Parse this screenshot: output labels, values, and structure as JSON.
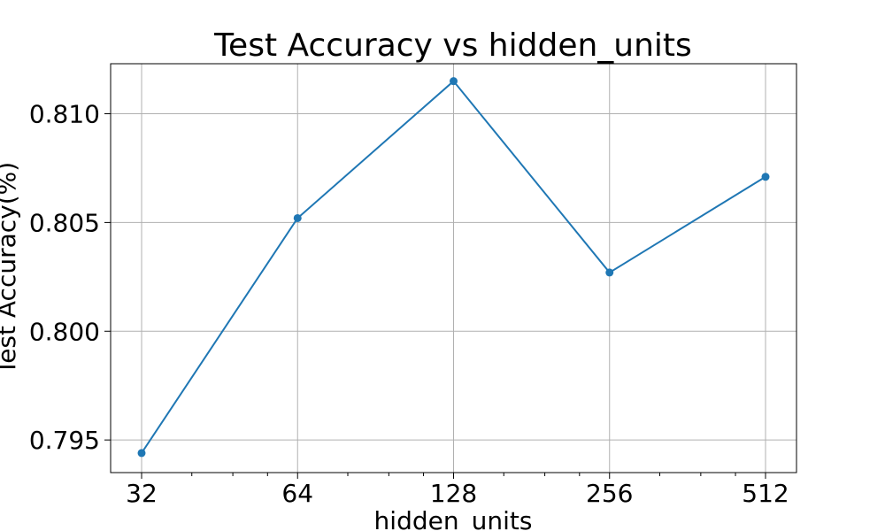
{
  "chart_data": {
    "type": "line",
    "title": "Test Accuracy vs hidden_units",
    "xlabel": "hidden_units",
    "ylabel": "Test Accuracy(%)",
    "x_scale": "log2",
    "x": [
      32,
      64,
      128,
      256,
      512
    ],
    "x_tick_labels": [
      "32",
      "64",
      "128",
      "256",
      "512"
    ],
    "y_ticks": [
      0.795,
      0.8,
      0.805,
      0.81
    ],
    "y_tick_labels": [
      "0.795",
      "0.800",
      "0.805",
      "0.810"
    ],
    "ylim": [
      0.7935,
      0.8123
    ],
    "grid": true,
    "series": [
      {
        "color": "#1f77b4",
        "marker": "circle",
        "values": [
          0.7944,
          0.8052,
          0.8115,
          0.8027,
          0.8071
        ]
      }
    ]
  }
}
